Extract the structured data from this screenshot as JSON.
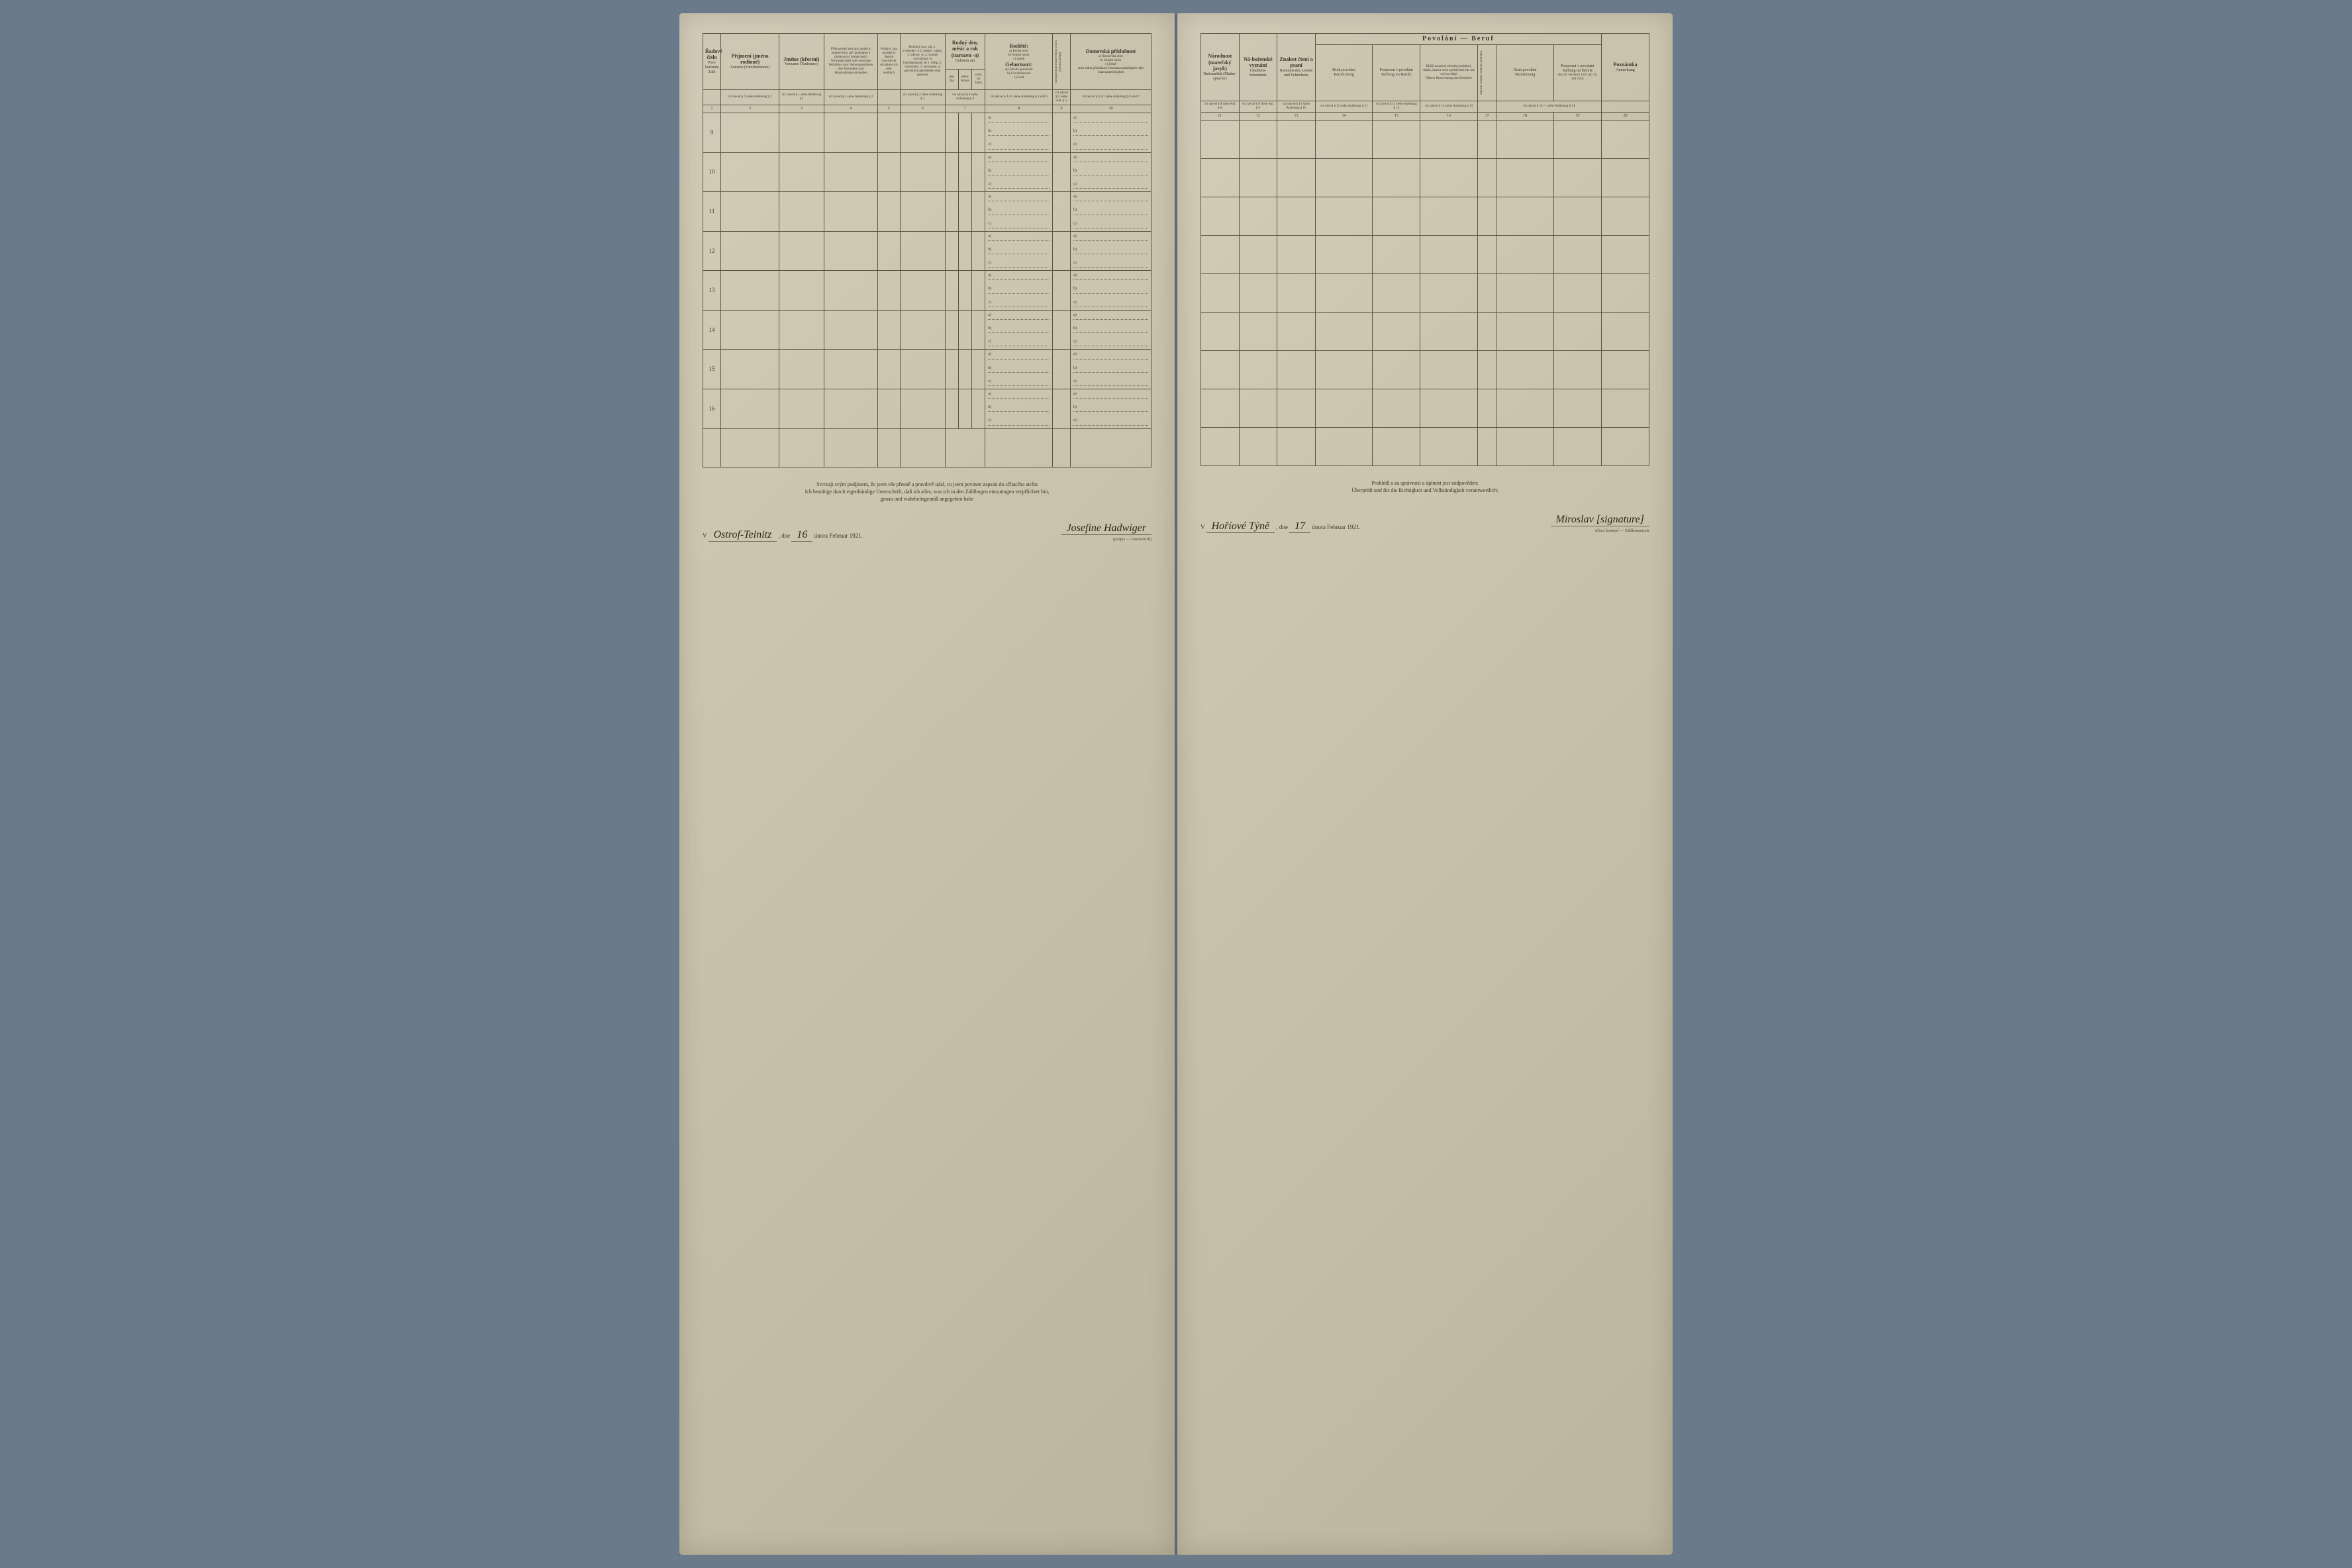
{
  "left": {
    "headers": {
      "col1": {
        "cz": "Řadové číslo",
        "de": "Port-laufende Zahl"
      },
      "col2": {
        "cz": "Příjmení (jméno rodinné)",
        "de": "Zuname (Familienname)"
      },
      "col3": {
        "cz": "Jméno (křestní)",
        "de": "Vorname (Taufname)"
      },
      "col4": {
        "cz": "Příbuzenský neb jiný poměr k majiteli bytu (při podnájmu k přednostovi domácnosti)",
        "de": "Verwandtschaft oder sonstiges Verhältnis zum Wohnungsinhaber (bei Abermiete zum Haushaltungsvorstande)"
      },
      "col5": {
        "cz": "Pohlaví, zda mužské či ženské",
        "de": "Geschlecht ob männ-lich oder weiblich"
      },
      "col6": {
        "cz": "Rodinný stav, zda 1. svobodný -á 2. ženatý, vdaná, 3. vdovec -á, 4. soudně rozloučený -á",
        "de": "Familienstand, ob 1. ledig, 2. verheiratet, 3. verwitwet, 4. gerichtlich geschieden oder getrennt"
      },
      "col7": {
        "cz": "Rodný den, měsíc a rok (narozen -a)",
        "de": "Geboren am",
        "sub": [
          "den Tag",
          "měsíc Monat",
          "roku im Jahre"
        ]
      },
      "col8": {
        "cz": "Rodiště:",
        "de": "Geburtsort:",
        "items": [
          "a) Rodná obec",
          "b) Soudní okres",
          "c) Země",
          "a) Geburts-gemeinde",
          "b) Gerichtsbezirk",
          "c) Land"
        ]
      },
      "col9": {
        "vertical": "Od kdy bydlí trvale osoba v obci pobytu (místa)"
      },
      "col10": {
        "cz": "Domovská příslušnost",
        "de": "aneb státní příslušnost Heimatszuständigkeit oder Staatsangehörigkeit",
        "items": [
          "a) Domovská obec",
          "b) Soudní okres",
          "c) Země",
          "a) Heimatsgemeinde",
          "b) Gerichtsbezirk",
          "c) Land"
        ]
      }
    },
    "refs": [
      "",
      "viz návod § 1 siehe Anleitung § 1",
      "viz návod § 1 siehe Anleitung §1",
      "viz návod § 2 siehe Anleitung § 2",
      "",
      "viz návod § 3 siehe Anleitung § 3",
      "viz návod § 4 siehe Anleitung § 4",
      "viz návod § 4 a 5 siehe Anleitung § 4 und 5",
      "viz návod § 5 siehe Anl. § 5",
      "viz návod § 6 a 7 siehe Anleitung § 6 und 7"
    ],
    "colnums": [
      "1",
      "2",
      "3",
      "4",
      "5",
      "6",
      "7",
      "8",
      "9",
      "10"
    ],
    "rows": [
      "9",
      "10",
      "11",
      "12",
      "13",
      "14",
      "15",
      "16"
    ],
    "footer": {
      "line1": "Stvrzuji svým podpisem, že jsem vše přesně a pravdivě udal, co jsem povinen zapsati do sčítacího archu",
      "line2": "Ich bestätige durch eigenhändige Unterschrift, daß ich alles, was ich in den Zählbogen einzutragen verpflichtet bin,",
      "line3": "genau und wahrheitsgemäß angegeben habe",
      "place": "Ostrof-Teinitz",
      "date_prefix": "dne",
      "day": "16",
      "month": "února Februar",
      "year": "1921.",
      "signature": "Josefine Hadwiger",
      "sig_sub": "(podpis — Unterschrift)"
    }
  },
  "right": {
    "spanning": "Povolání — Beruf",
    "headers": {
      "col11": {
        "cz": "Národnost (mateřský jazyk)",
        "de": "Nationalität (Mutter-sprache)"
      },
      "col12": {
        "cz": "Ná-boženské vyznání",
        "de": "Glaubens-bekenntnis"
      },
      "col13": {
        "cz": "Znalost čtení a psaní",
        "de": "Kenntnis des Lesens und Schreibens"
      },
      "col14": {
        "cz": "Druh povolání",
        "de": "Berufszweig"
      },
      "col15": {
        "cz": "Postavení v povolání",
        "de": "Stellung im Berufe"
      },
      "col16": {
        "cz": "Bližší označení závodu (podniku), úřadu, ústavu nebo společnosti kde má své povolání",
        "de": "Nähere Bezeichnung des Betriebes"
      },
      "col17": {
        "vertical": "Zda má sčítaný vedlejší povolání"
      },
      "col18": {
        "cz": "Druh povolání",
        "de": "Berufszweig"
      },
      "col19": {
        "cz": "Postavení v povolání",
        "de": "Stellung im Berufe",
        "date": "dne 16. července 1914 am 16. Juli 1914"
      },
      "col20": {
        "cz": "Poznámka",
        "de": "Anmerkung"
      }
    },
    "refs": [
      "viz návod § 8 siehe Anl. § 8",
      "viz návod § 9 siehe Anl. § 9",
      "viz návod § 10 siehe Anleitung § 10",
      "viz návod § 11 siehe Anleitung § 11",
      "viz návod § 12 siehe Anleitung § 12",
      "viz návod § 13 siehe Anleitung § 13",
      "",
      "viz návod § 14 — siehe Anleitung § 14",
      ""
    ],
    "colnums": [
      "11",
      "12",
      "13",
      "14",
      "15",
      "16",
      "17",
      "18",
      "19",
      "20"
    ],
    "footer": {
      "line1": "Prohlédl a za správnost a úplnost jest zodpověden:",
      "line2": "Überprüft und für die Richtigkeit und Vollständigkeit verantwortlich:",
      "place": "Hoříové Týně",
      "date_prefix": "dne",
      "day": "17",
      "month": "února Februar",
      "year": "1921.",
      "signature": "Miroslav [signature]",
      "sig_sub": "sčítací komisař — Zählkommissär"
    }
  }
}
